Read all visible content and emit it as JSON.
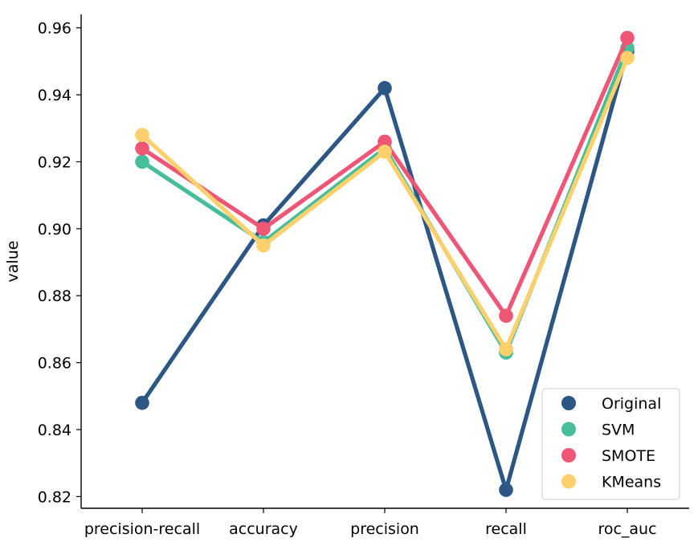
{
  "chart_data": {
    "type": "line",
    "title": "",
    "xlabel": "",
    "ylabel": "value",
    "categories": [
      "precision-recall",
      "accuracy",
      "precision",
      "recall",
      "roc_auc"
    ],
    "yticks": [
      "0.82",
      "0.84",
      "0.86",
      "0.88",
      "0.90",
      "0.92",
      "0.94",
      "0.96"
    ],
    "ytick_values": [
      0.82,
      0.84,
      0.86,
      0.88,
      0.9,
      0.92,
      0.94,
      0.96
    ],
    "ylim": [
      0.8165,
      0.964
    ],
    "grid": false,
    "legend_position": "bottom-right",
    "series": [
      {
        "name": "Original",
        "color": "#2c5784",
        "values": [
          0.848,
          0.901,
          0.942,
          0.822,
          0.953
        ]
      },
      {
        "name": "SVM",
        "color": "#47be9b",
        "values": [
          0.92,
          0.896,
          0.924,
          0.863,
          0.954
        ]
      },
      {
        "name": "SMOTE",
        "color": "#ef5675",
        "values": [
          0.924,
          0.9,
          0.926,
          0.874,
          0.957
        ]
      },
      {
        "name": "KMeans",
        "color": "#ffd06b",
        "values": [
          0.928,
          0.895,
          0.923,
          0.864,
          0.951
        ]
      }
    ]
  }
}
